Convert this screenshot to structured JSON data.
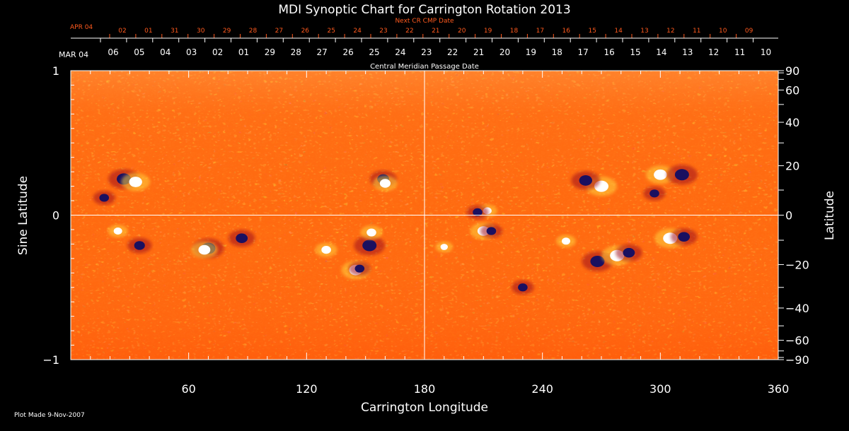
{
  "chart_data": {
    "type": "heatmap",
    "title": "MDI Synoptic Chart for Carrington Rotation 2013",
    "xlabel": "Carrington Longitude",
    "ylabel_left": "Sine Latitude",
    "ylabel_right": "Latitude",
    "xlim": [
      0,
      360
    ],
    "ylim": [
      -1,
      1
    ],
    "x_ticks": [
      60,
      120,
      180,
      240,
      300,
      360
    ],
    "x_minor_step": 10,
    "y_left_ticks": [
      -1,
      0,
      1
    ],
    "y_left_tick_labels": [
      "−1",
      "0",
      "1"
    ],
    "y_right_ticks": [
      90,
      60,
      40,
      20,
      0,
      -20,
      -40,
      -60,
      -90
    ],
    "y_right_tick_labels": [
      "90",
      "60",
      "40",
      "20",
      "0",
      "−20",
      "−40",
      "−60",
      "−90"
    ],
    "reference_lines": {
      "x": 180,
      "y": 0
    },
    "cmp_date_label": "Central Meridian Passage Date",
    "cmp_month_label": "MAR 04",
    "cmp_dates": [
      "06",
      "05",
      "04",
      "03",
      "02",
      "01",
      "29",
      "28",
      "27",
      "26",
      "25",
      "24",
      "23",
      "22",
      "21",
      "20",
      "19",
      "18",
      "17",
      "16",
      "15",
      "14",
      "13",
      "12",
      "11",
      "10"
    ],
    "next_cr_label": "Next CR CMP Date",
    "next_cr_month_label": "APR 04",
    "next_cr_dates": [
      "02",
      "01",
      "31",
      "30",
      "29",
      "28",
      "27",
      "26",
      "25",
      "24",
      "23",
      "22",
      "21",
      "20",
      "19",
      "18",
      "17",
      "16",
      "15",
      "14",
      "13",
      "12",
      "11",
      "10",
      "09"
    ],
    "active_regions": [
      {
        "lon": 27,
        "sinlat": 0.25,
        "polarity": "negative",
        "strength": 1.0
      },
      {
        "lon": 33,
        "sinlat": 0.23,
        "polarity": "positive",
        "strength": 0.9
      },
      {
        "lon": 17,
        "sinlat": 0.12,
        "polarity": "negative",
        "strength": 0.6
      },
      {
        "lon": 159,
        "sinlat": 0.25,
        "polarity": "negative",
        "strength": 0.8
      },
      {
        "lon": 160,
        "sinlat": 0.22,
        "polarity": "positive",
        "strength": 0.7
      },
      {
        "lon": 270,
        "sinlat": 0.2,
        "polarity": "positive",
        "strength": 1.0
      },
      {
        "lon": 262,
        "sinlat": 0.24,
        "polarity": "negative",
        "strength": 0.9
      },
      {
        "lon": 300,
        "sinlat": 0.28,
        "polarity": "positive",
        "strength": 0.9
      },
      {
        "lon": 311,
        "sinlat": 0.28,
        "polarity": "negative",
        "strength": 1.0
      },
      {
        "lon": 297,
        "sinlat": 0.15,
        "polarity": "negative",
        "strength": 0.6
      },
      {
        "lon": 24,
        "sinlat": -0.11,
        "polarity": "positive",
        "strength": 0.5
      },
      {
        "lon": 35,
        "sinlat": -0.21,
        "polarity": "negative",
        "strength": 0.7
      },
      {
        "lon": 70,
        "sinlat": -0.23,
        "polarity": "negative",
        "strength": 1.0
      },
      {
        "lon": 68,
        "sinlat": -0.24,
        "polarity": "positive",
        "strength": 0.8
      },
      {
        "lon": 87,
        "sinlat": -0.16,
        "polarity": "negative",
        "strength": 0.8
      },
      {
        "lon": 130,
        "sinlat": -0.24,
        "polarity": "positive",
        "strength": 0.6
      },
      {
        "lon": 152,
        "sinlat": -0.21,
        "polarity": "negative",
        "strength": 1.0
      },
      {
        "lon": 153,
        "sinlat": -0.12,
        "polarity": "positive",
        "strength": 0.6
      },
      {
        "lon": 145,
        "sinlat": -0.38,
        "polarity": "positive",
        "strength": 0.9
      },
      {
        "lon": 147,
        "sinlat": -0.37,
        "polarity": "negative",
        "strength": 0.6
      },
      {
        "lon": 210,
        "sinlat": -0.11,
        "polarity": "positive",
        "strength": 0.8
      },
      {
        "lon": 214,
        "sinlat": -0.11,
        "polarity": "negative",
        "strength": 0.6
      },
      {
        "lon": 212,
        "sinlat": 0.03,
        "polarity": "positive",
        "strength": 0.5
      },
      {
        "lon": 207,
        "sinlat": 0.02,
        "polarity": "negative",
        "strength": 0.6
      },
      {
        "lon": 268,
        "sinlat": -0.32,
        "polarity": "negative",
        "strength": 1.0
      },
      {
        "lon": 278,
        "sinlat": -0.28,
        "polarity": "positive",
        "strength": 1.0
      },
      {
        "lon": 284,
        "sinlat": -0.26,
        "polarity": "negative",
        "strength": 0.8
      },
      {
        "lon": 305,
        "sinlat": -0.16,
        "polarity": "positive",
        "strength": 1.0
      },
      {
        "lon": 312,
        "sinlat": -0.15,
        "polarity": "negative",
        "strength": 0.8
      },
      {
        "lon": 230,
        "sinlat": -0.5,
        "polarity": "negative",
        "strength": 0.6
      },
      {
        "lon": 190,
        "sinlat": -0.22,
        "polarity": "positive",
        "strength": 0.4
      },
      {
        "lon": 252,
        "sinlat": -0.18,
        "polarity": "positive",
        "strength": 0.5
      }
    ],
    "colors": {
      "background": "#000000",
      "text": "#ffffff",
      "next_cr_text": "#ff5a1e",
      "map_base": "#ff6a10",
      "map_positive": "#ffffff",
      "map_mid_positive": "#ffd23c",
      "map_mid_negative": "#a0101c",
      "map_negative": "#1a1060",
      "guide_lines": "#ffffff"
    }
  },
  "footer": {
    "plot_made": "Plot Made  9-Nov-2007"
  }
}
